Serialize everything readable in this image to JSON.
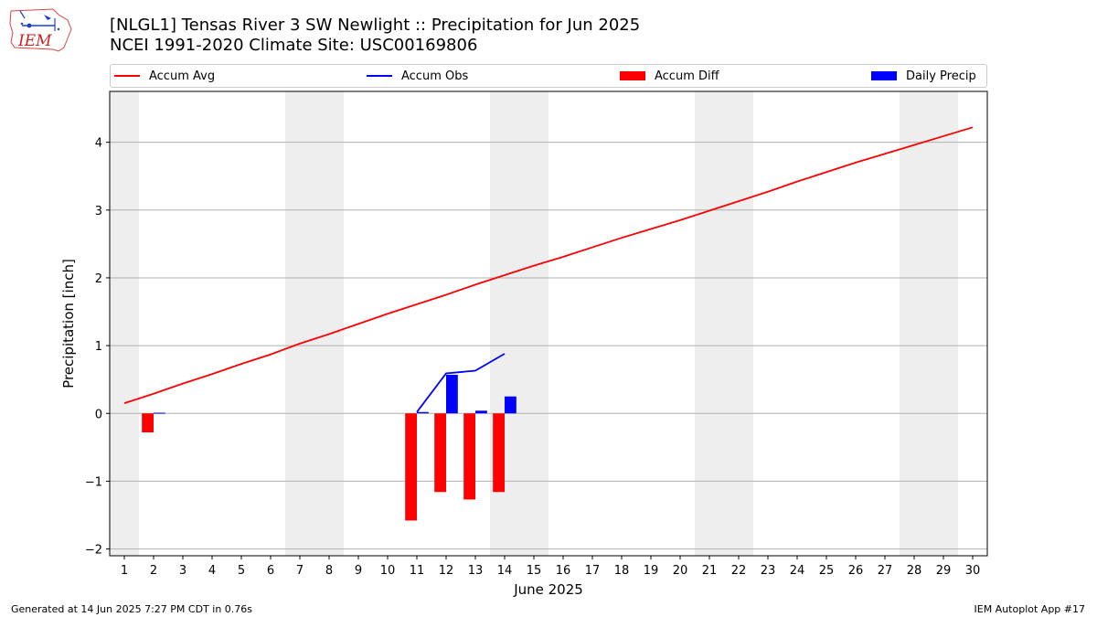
{
  "header": {
    "title_line1": "[NLGL1] Tensas River 3 SW Newlight :: Precipitation for Jun 2025",
    "title_line2": "NCEI 1991-2020 Climate Site: USC00169806",
    "logo_text": "IEM"
  },
  "legend": {
    "accum_avg": "Accum Avg",
    "accum_obs": "Accum Obs",
    "accum_diff": "Accum Diff",
    "daily_precip": "Daily Precip"
  },
  "footer": {
    "generated": "Generated at 14 Jun 2025 7:27 PM CDT in 0.76s",
    "app": "IEM Autoplot App #17"
  },
  "colors": {
    "avg": "#ff0000",
    "obs": "#0000ff",
    "diff": "#ff0000",
    "daily": "#0000ff",
    "weekend": "#eeeeee",
    "grid": "#b0b0b0"
  },
  "chart_data": {
    "type": "bar",
    "xlabel": "June 2025",
    "ylabel": "Precipitation [inch]",
    "xlim": [
      0.5,
      30.5
    ],
    "ylim": [
      -2.1,
      4.75
    ],
    "x_ticks": [
      1,
      2,
      3,
      4,
      5,
      6,
      7,
      8,
      9,
      10,
      11,
      12,
      13,
      14,
      15,
      16,
      17,
      18,
      19,
      20,
      21,
      22,
      23,
      24,
      25,
      26,
      27,
      28,
      29,
      30
    ],
    "y_ticks": [
      -2,
      -1,
      0,
      1,
      2,
      3,
      4
    ],
    "y_tick_labels": [
      "−2",
      "−1",
      "0",
      "1",
      "2",
      "3",
      "4"
    ],
    "grid": "y",
    "weekend_days": [
      1,
      7,
      8,
      14,
      15,
      21,
      22,
      28,
      29
    ],
    "series": [
      {
        "name": "Accum Avg",
        "kind": "line",
        "x": [
          1,
          2,
          3,
          4,
          5,
          6,
          7,
          8,
          9,
          10,
          11,
          12,
          13,
          14,
          15,
          16,
          17,
          18,
          19,
          20,
          21,
          22,
          23,
          24,
          25,
          26,
          27,
          28,
          29,
          30
        ],
        "values": [
          0.15,
          0.29,
          0.44,
          0.58,
          0.73,
          0.87,
          1.03,
          1.17,
          1.32,
          1.47,
          1.61,
          1.75,
          1.9,
          2.04,
          2.18,
          2.31,
          2.45,
          2.59,
          2.72,
          2.85,
          2.99,
          3.13,
          3.27,
          3.42,
          3.56,
          3.7,
          3.83,
          3.96,
          4.09,
          4.22
        ]
      },
      {
        "name": "Accum Obs",
        "kind": "line",
        "x": [
          11,
          12,
          13,
          14
        ],
        "values": [
          0.02,
          0.59,
          0.63,
          0.88
        ]
      },
      {
        "name": "Accum Diff",
        "kind": "bar",
        "x": [
          2,
          11,
          12,
          13,
          14
        ],
        "values": [
          -0.28,
          -1.58,
          -1.16,
          -1.27,
          -1.16
        ]
      },
      {
        "name": "Daily Precip",
        "kind": "bar",
        "x": [
          2,
          11,
          12,
          13,
          14
        ],
        "values": [
          0.01,
          0.02,
          0.57,
          0.04,
          0.25
        ]
      }
    ]
  }
}
